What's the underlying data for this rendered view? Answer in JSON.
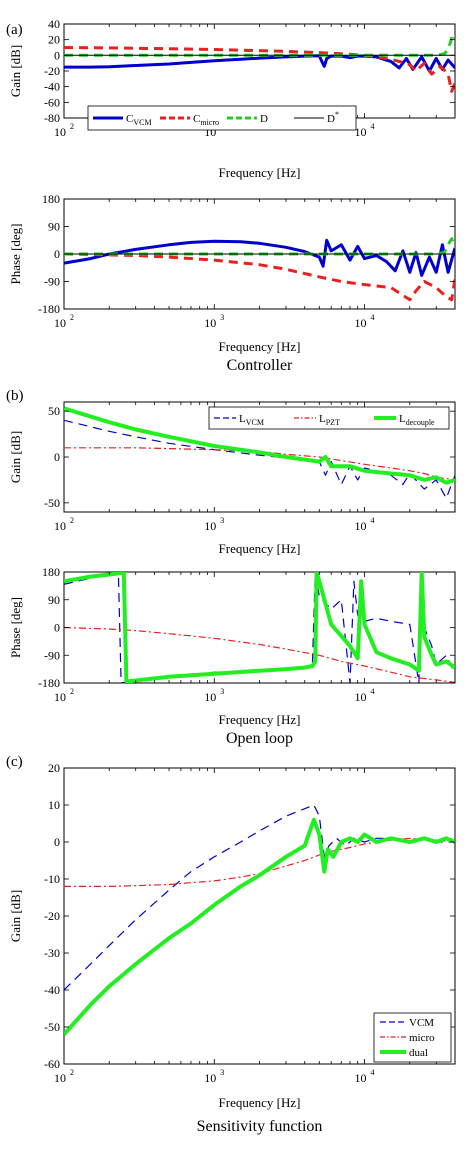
{
  "chart_data": [
    {
      "type": "line",
      "panel": "(a)",
      "plot": "gain",
      "ylabel": "Gain [dB]",
      "xlabel": "Frequency [Hz]",
      "xscale": "log",
      "xlim": [
        100,
        40000
      ],
      "ylim": [
        -80,
        40
      ],
      "yticks": [
        40,
        20,
        0,
        -20,
        -40,
        -60,
        -80
      ],
      "xticks": [
        "10",
        "10",
        "10"
      ],
      "xtick_exp": [
        "2",
        "3",
        "4"
      ],
      "xtick_values": [
        100,
        1000,
        10000
      ],
      "grid": false,
      "legend_position": "bottom",
      "legend": [
        {
          "base": "C",
          "sub": "VCM",
          "sup": ""
        },
        {
          "base": "C",
          "sub": "micro",
          "sup": ""
        },
        {
          "base": "D",
          "sub": "",
          "sup": ""
        },
        {
          "base": "D",
          "sub": "",
          "sup": "*"
        }
      ],
      "series": [
        {
          "color": "#0000cc",
          "dash": "solid",
          "width": 3,
          "x": [
            100,
            150,
            200,
            300,
            500,
            700,
            1000,
            1500,
            2000,
            3000,
            4000,
            5000,
            5200,
            5400,
            5600,
            6000,
            7000,
            8000,
            9000,
            10000,
            12000,
            15000,
            17000,
            19000,
            21000,
            24000,
            27000,
            30000,
            33000,
            36000,
            40000
          ],
          "y": [
            -15,
            -15,
            -14.5,
            -13,
            -11,
            -9,
            -7,
            -5,
            -3.5,
            -2,
            -1,
            -0.5,
            -8,
            -14,
            -4,
            -1,
            -1,
            -3,
            -1,
            -1,
            -2,
            -8,
            -16,
            -4,
            -18,
            -2,
            -20,
            -4,
            -18,
            -6,
            -16
          ]
        },
        {
          "color": "#e8201e",
          "dash": "dash",
          "width": 3,
          "x": [
            100,
            200,
            300,
            500,
            1000,
            2000,
            3000,
            5000,
            7000,
            10000,
            12000,
            15000,
            18000,
            20000,
            22000,
            25000,
            28000,
            32000,
            36000,
            38000,
            40000
          ],
          "y": [
            10,
            9.5,
            9,
            8.5,
            7.5,
            6,
            5,
            3.5,
            2,
            0,
            -2,
            -5,
            -9,
            -12,
            -20,
            -10,
            -24,
            -14,
            -24,
            -46,
            -35
          ]
        },
        {
          "color": "#22cc22",
          "dash": "dash",
          "width": 3,
          "x": [
            100,
            1000,
            10000,
            20000,
            30000,
            34000,
            36000,
            37500,
            38500,
            40000
          ],
          "y": [
            0,
            0,
            0,
            0,
            0,
            2,
            8,
            18,
            27,
            22
          ]
        },
        {
          "color": "#000000",
          "dash": "solid",
          "width": 1,
          "x": [
            100,
            40000
          ],
          "y": [
            0,
            0
          ]
        }
      ]
    },
    {
      "type": "line",
      "panel": "(a)",
      "plot": "phase",
      "ylabel": "Phase [deg]",
      "xlabel": "Frequency [Hz]",
      "caption": "Controller",
      "xscale": "log",
      "xlim": [
        100,
        40000
      ],
      "ylim": [
        -180,
        180
      ],
      "yticks": [
        180,
        90,
        0,
        -90,
        -180
      ],
      "xticks": [
        "10",
        "10",
        "10"
      ],
      "xtick_exp": [
        "2",
        "3",
        "4"
      ],
      "xtick_values": [
        100,
        1000,
        10000
      ],
      "grid": false,
      "series": [
        {
          "color": "#0000cc",
          "dash": "solid",
          "width": 3,
          "x": [
            100,
            150,
            200,
            300,
            500,
            700,
            1000,
            1500,
            2000,
            3000,
            4000,
            5000,
            5300,
            5600,
            6000,
            7000,
            8000,
            9000,
            10000,
            12000,
            14000,
            16000,
            18000,
            20000,
            22000,
            24000,
            27000,
            30000,
            33000,
            36000,
            40000
          ],
          "y": [
            -30,
            -15,
            0,
            15,
            30,
            38,
            42,
            40,
            35,
            22,
            8,
            -10,
            -40,
            45,
            10,
            30,
            -20,
            25,
            -15,
            -5,
            -25,
            -55,
            10,
            -60,
            5,
            -70,
            -10,
            -60,
            30,
            -60,
            20
          ]
        },
        {
          "color": "#e8201e",
          "dash": "dash",
          "width": 3,
          "x": [
            100,
            200,
            300,
            500,
            1000,
            2000,
            3000,
            5000,
            7000,
            10000,
            15000,
            20000,
            22000,
            25000,
            30000,
            35000,
            38000,
            40000
          ],
          "y": [
            0,
            -3,
            -5,
            -10,
            -20,
            -35,
            -50,
            -75,
            -90,
            -100,
            -110,
            -150,
            -120,
            -90,
            -110,
            -140,
            -150,
            -80
          ]
        },
        {
          "color": "#22cc22",
          "dash": "dash",
          "width": 3,
          "x": [
            100,
            1000,
            10000,
            25000,
            30000,
            34000,
            36000,
            38000,
            40000
          ],
          "y": [
            0,
            0,
            0,
            0,
            0,
            5,
            30,
            50,
            20
          ]
        },
        {
          "color": "#000000",
          "dash": "solid",
          "width": 1,
          "x": [
            100,
            40000
          ],
          "y": [
            0,
            0
          ]
        }
      ]
    },
    {
      "type": "line",
      "panel": "(b)",
      "plot": "gain",
      "ylabel": "Gain [dB]",
      "xlabel": "Frequency [Hz]",
      "xscale": "log",
      "xlim": [
        100,
        40000
      ],
      "ylim": [
        -60,
        60
      ],
      "yticks": [
        50,
        0,
        -50
      ],
      "xticks": [
        "10",
        "10",
        "10"
      ],
      "xtick_exp": [
        "2",
        "3",
        "4"
      ],
      "xtick_values": [
        100,
        1000,
        10000
      ],
      "grid": false,
      "legend_position": "top-right",
      "legend": [
        {
          "base": "L",
          "sub": "VCM",
          "sup": ""
        },
        {
          "base": "L",
          "sub": "PZT",
          "sup": ""
        },
        {
          "base": "L",
          "sub": "decouple",
          "sup": ""
        }
      ],
      "series": [
        {
          "color": "#0000cc",
          "dash": "dash",
          "width": 1.2,
          "x": [
            100,
            200,
            300,
            500,
            1000,
            2000,
            3000,
            5000,
            5500,
            6000,
            7000,
            8000,
            9000,
            10000,
            12000,
            15000,
            18000,
            20000,
            25000,
            30000,
            35000,
            40000
          ],
          "y": [
            40,
            28,
            22,
            15,
            8,
            2,
            -1,
            -5,
            -20,
            -5,
            -30,
            -10,
            -25,
            -12,
            -15,
            -20,
            -30,
            -18,
            -35,
            -25,
            -45,
            -20
          ]
        },
        {
          "color": "#e8201e",
          "dash": "dashdot",
          "width": 1.2,
          "x": [
            100,
            300,
            1000,
            2000,
            3000,
            5000,
            10000,
            15000,
            20000,
            25000,
            30000,
            40000
          ],
          "y": [
            10,
            10,
            8,
            6,
            3,
            0,
            -8,
            -12,
            -15,
            -18,
            -22,
            -25
          ]
        },
        {
          "color": "#22ee22",
          "dash": "solid",
          "width": 4,
          "x": [
            100,
            200,
            300,
            500,
            1000,
            2000,
            3000,
            5000,
            5500,
            6000,
            8000,
            10000,
            15000,
            20000,
            25000,
            30000,
            35000,
            40000
          ],
          "y": [
            53,
            38,
            30,
            22,
            12,
            5,
            0,
            -5,
            0,
            -10,
            -10,
            -15,
            -18,
            -20,
            -25,
            -22,
            -28,
            -25
          ]
        }
      ]
    },
    {
      "type": "line",
      "panel": "(b)",
      "plot": "phase",
      "ylabel": "Phase [deg]",
      "xlabel": "Frequency [Hz]",
      "caption": "Open loop",
      "xscale": "log",
      "xlim": [
        100,
        40000
      ],
      "ylim": [
        -180,
        180
      ],
      "yticks": [
        180,
        90,
        0,
        -90,
        -180
      ],
      "xticks": [
        "10",
        "10",
        "10"
      ],
      "xtick_exp": [
        "2",
        "3",
        "4"
      ],
      "xtick_values": [
        100,
        1000,
        10000
      ],
      "grid": false,
      "series": [
        {
          "color": "#0000cc",
          "dash": "dash",
          "width": 1.2,
          "x": [
            100,
            150,
            200,
            230,
            240,
            300,
            500,
            1000,
            2000,
            3000,
            4000,
            4500,
            4700,
            4800,
            5000,
            6000,
            7000,
            8000,
            8500,
            9000,
            10000,
            12000,
            15000,
            20000,
            23000,
            24000,
            25000,
            28000,
            30000,
            35000,
            40000
          ],
          "y": [
            140,
            160,
            170,
            175,
            -180,
            -170,
            -160,
            -145,
            -140,
            -135,
            -130,
            -120,
            180,
            160,
            100,
            60,
            90,
            -180,
            150,
            40,
            20,
            30,
            20,
            10,
            -180,
            180,
            0,
            -60,
            -120,
            -90,
            -150
          ]
        },
        {
          "color": "#e8201e",
          "dash": "dashdot",
          "width": 1.2,
          "x": [
            100,
            200,
            300,
            500,
            1000,
            2000,
            3000,
            5000,
            7000,
            10000,
            15000,
            20000,
            30000,
            40000
          ],
          "y": [
            0,
            -5,
            -10,
            -20,
            -35,
            -55,
            -70,
            -90,
            -110,
            -125,
            -145,
            -160,
            -170,
            -178
          ]
        },
        {
          "color": "#22ee22",
          "dash": "solid",
          "width": 4,
          "x": [
            100,
            150,
            200,
            250,
            260,
            300,
            500,
            1000,
            2000,
            3000,
            4000,
            4500,
            4700,
            4800,
            5000,
            6000,
            8000,
            9000,
            9500,
            10000,
            12000,
            15000,
            20000,
            23000,
            24000,
            25000,
            28000,
            30000,
            35000,
            40000
          ],
          "y": [
            150,
            165,
            172,
            178,
            -175,
            -172,
            -160,
            -150,
            -140,
            -135,
            -130,
            -125,
            -110,
            180,
            150,
            10,
            -60,
            -100,
            150,
            10,
            -80,
            -100,
            -120,
            -140,
            180,
            -30,
            -90,
            -120,
            -110,
            -130
          ]
        }
      ]
    },
    {
      "type": "line",
      "panel": "(c)",
      "plot": "gain",
      "ylabel": "Gain [dB]",
      "xlabel": "Frequency [Hz]",
      "caption": "Sensitivity function",
      "xscale": "log",
      "xlim": [
        100,
        40000
      ],
      "ylim": [
        -60,
        20
      ],
      "yticks": [
        20,
        10,
        0,
        -10,
        -20,
        -30,
        -40,
        -50,
        -60
      ],
      "xticks": [
        "10",
        "10",
        "10"
      ],
      "xtick_exp": [
        "2",
        "3",
        "4"
      ],
      "xtick_values": [
        100,
        1000,
        10000
      ],
      "grid": false,
      "legend_position": "bottom-right",
      "legend": [
        {
          "base": "VCM",
          "sub": "",
          "sup": ""
        },
        {
          "base": "micro",
          "sub": "",
          "sup": ""
        },
        {
          "base": "dual",
          "sub": "",
          "sup": ""
        }
      ],
      "series": [
        {
          "color": "#0000cc",
          "dash": "dash",
          "width": 1.2,
          "x": [
            100,
            150,
            200,
            300,
            500,
            700,
            1000,
            1500,
            2000,
            3000,
            4000,
            4600,
            5000,
            5400,
            5800,
            6500,
            7500,
            8500,
            10000,
            12000,
            15000,
            20000,
            25000,
            30000,
            35000,
            40000
          ],
          "y": [
            -40,
            -33,
            -28,
            -21,
            -13,
            -8,
            -4,
            0,
            3,
            7,
            9,
            10,
            7,
            -4,
            -1,
            1,
            -1,
            1,
            0,
            1,
            1,
            0,
            1,
            0,
            0,
            0
          ]
        },
        {
          "color": "#e8201e",
          "dash": "dashdot",
          "width": 1.2,
          "x": [
            100,
            200,
            300,
            500,
            700,
            1000,
            1500,
            2000,
            3000,
            4000,
            5000,
            6000,
            8000,
            10000,
            15000,
            20000,
            30000,
            40000
          ],
          "y": [
            -12,
            -12,
            -11.8,
            -11.5,
            -11,
            -10.5,
            -9.5,
            -8.5,
            -6.5,
            -5,
            -3.5,
            -2.5,
            -1.5,
            -0.5,
            0.5,
            1,
            0.5,
            0
          ]
        },
        {
          "color": "#22ee22",
          "dash": "solid",
          "width": 4,
          "x": [
            100,
            150,
            200,
            300,
            500,
            700,
            1000,
            1500,
            2000,
            3000,
            4000,
            4600,
            5000,
            5400,
            5700,
            6200,
            7000,
            8000,
            9000,
            10000,
            12000,
            15000,
            20000,
            25000,
            30000,
            35000,
            40000
          ],
          "y": [
            -52,
            -44,
            -39,
            -33,
            -26,
            -22,
            -17,
            -12,
            -9,
            -4,
            -1,
            6,
            2,
            -8,
            -2,
            -4,
            0,
            1,
            0,
            2,
            0,
            1,
            0,
            1,
            0,
            1,
            0
          ]
        }
      ]
    }
  ]
}
